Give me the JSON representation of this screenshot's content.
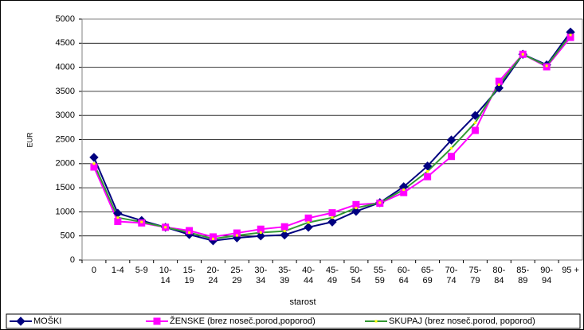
{
  "chart_data": {
    "type": "line",
    "categories": [
      "0",
      "1-4",
      "5-9",
      "10-14",
      "15-19",
      "20-24",
      "25-29",
      "30-34",
      "35-39",
      "40-44",
      "45-49",
      "50-54",
      "55-59",
      "60-64",
      "65-69",
      "70-74",
      "75-79",
      "80-84",
      "85-89",
      "90-94",
      "95 +"
    ],
    "series": [
      {
        "name": "MOŠKI",
        "color": "#000080",
        "marker": "diamond",
        "marker_color": "#000080",
        "values": [
          2130,
          970,
          820,
          680,
          530,
          400,
          460,
          500,
          520,
          680,
          790,
          1010,
          1190,
          1520,
          1950,
          2490,
          3000,
          3570,
          4270,
          4050,
          4730
        ]
      },
      {
        "name": "ŽENSKE (brez noseč.porod,poporod)",
        "color": "#ff00ff",
        "marker": "square",
        "marker_color": "#ff00ff",
        "values": [
          1930,
          800,
          770,
          680,
          610,
          480,
          560,
          640,
          690,
          870,
          980,
          1150,
          1180,
          1400,
          1730,
          2150,
          2690,
          3710,
          4270,
          4010,
          4620
        ]
      },
      {
        "name": "SKUPAJ (brez noseč.porod, poporod)",
        "color": "#339933",
        "marker": "dot",
        "marker_color": "#ffff00",
        "values": [
          2000,
          880,
          790,
          680,
          570,
          440,
          510,
          570,
          600,
          780,
          880,
          1080,
          1190,
          1460,
          1840,
          2320,
          2850,
          3640,
          4270,
          4030,
          4670
        ]
      }
    ],
    "xlabel": "starost",
    "ylabel": "EUR",
    "ylim": [
      0,
      5000
    ],
    "yticks": [
      0,
      500,
      1000,
      1500,
      2000,
      2500,
      3000,
      3500,
      4000,
      4500,
      5000
    ],
    "grid": true,
    "legend": "bottom"
  }
}
